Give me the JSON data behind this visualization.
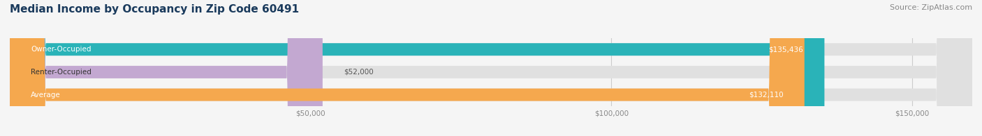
{
  "title": "Median Income by Occupancy in Zip Code 60491",
  "source": "Source: ZipAtlas.com",
  "categories": [
    "Owner-Occupied",
    "Renter-Occupied",
    "Average"
  ],
  "values": [
    135436,
    52000,
    132110
  ],
  "bar_colors": [
    "#2ab3b8",
    "#c3a8d1",
    "#f5a84e"
  ],
  "value_labels": [
    "$135,436",
    "$52,000",
    "$132,110"
  ],
  "xlim": [
    0,
    160000
  ],
  "xticks": [
    50000,
    100000,
    150000
  ],
  "xtick_labels": [
    "$50,000",
    "$100,000",
    "$150,000"
  ],
  "title_color": "#1a3a5c",
  "title_fontsize": 11,
  "source_fontsize": 8,
  "bar_height": 0.55,
  "bg_color": "#f5f5f5"
}
